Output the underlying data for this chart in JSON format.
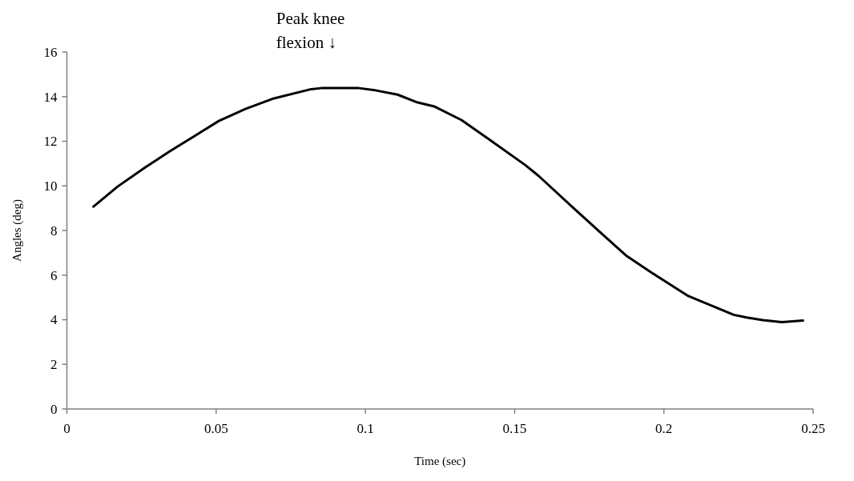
{
  "chart_data": {
    "type": "line",
    "xlabel": "Time (sec)",
    "ylabel": "Angles (deg)",
    "x": [
      0.0089,
      0.0169,
      0.0259,
      0.0348,
      0.042,
      0.0509,
      0.0598,
      0.0688,
      0.0813,
      0.0857,
      0.0974,
      0.1027,
      0.1108,
      0.117,
      0.1233,
      0.1322,
      0.1412,
      0.1537,
      0.1581,
      0.1688,
      0.1796,
      0.1876,
      0.1957,
      0.2082,
      0.2234,
      0.2278,
      0.2332,
      0.2395,
      0.2466
    ],
    "series": [
      {
        "color": "#000000",
        "values": [
          9.07,
          9.96,
          10.8,
          11.58,
          12.17,
          12.91,
          13.45,
          13.9,
          14.32,
          14.39,
          14.39,
          14.3,
          14.09,
          13.76,
          13.55,
          12.95,
          12.11,
          10.92,
          10.44,
          9.12,
          7.81,
          6.85,
          6.13,
          5.06,
          4.22,
          4.1,
          3.98,
          3.89,
          3.96
        ]
      }
    ],
    "xlim": [
      0,
      0.25
    ],
    "xticks": [
      0,
      0.05,
      0.1,
      0.15,
      0.2,
      0.25
    ],
    "ylim": [
      0,
      16
    ],
    "yticks": [
      0,
      2,
      4,
      6,
      8,
      10,
      12,
      14,
      16
    ],
    "grid": false,
    "marker": "none",
    "line_style": "solid",
    "annotations": [
      {
        "text": "Peak knee flexion ↓",
        "x": 0.0956,
        "y": 14.39
      }
    ]
  }
}
